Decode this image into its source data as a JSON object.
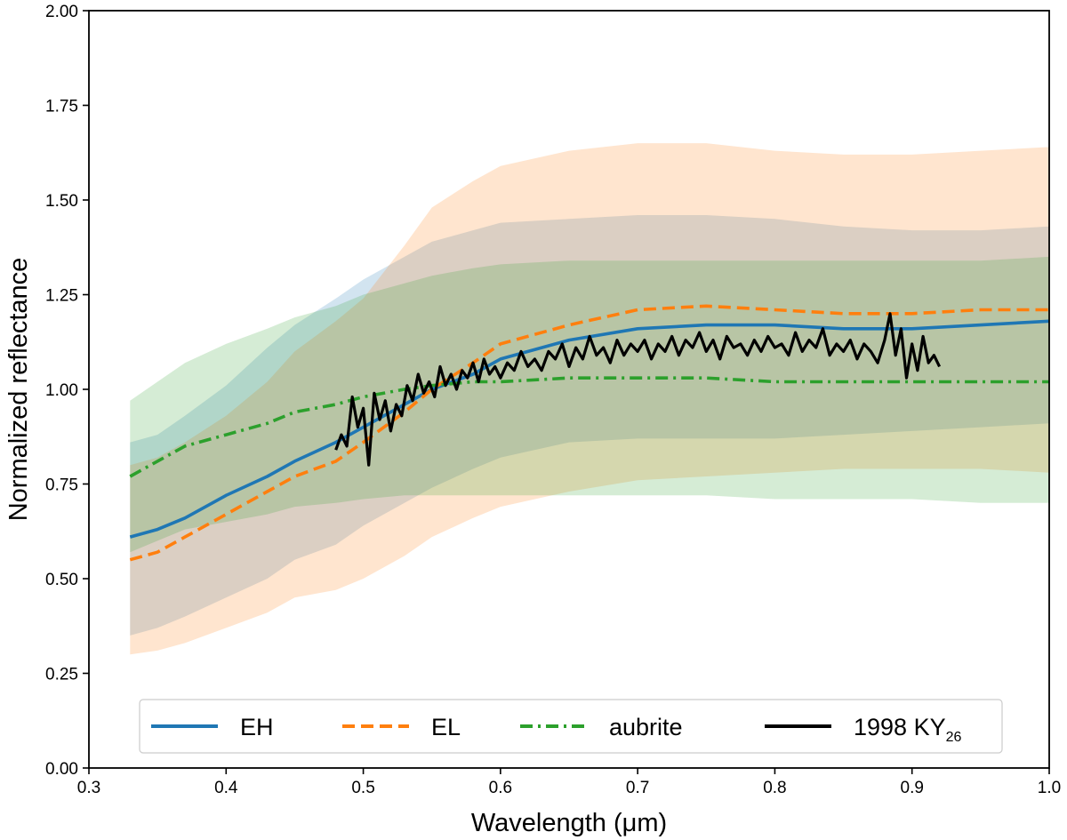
{
  "chart_data": {
    "type": "line",
    "title": "",
    "xlabel": "Wavelength (μm)",
    "ylabel": "Normalized reflectance",
    "xlim": [
      0.3,
      1.0
    ],
    "ylim": [
      0.0,
      2.0
    ],
    "xticks": [
      "0.3",
      "0.4",
      "0.5",
      "0.6",
      "0.7",
      "0.8",
      "0.9",
      "1.0"
    ],
    "yticks": [
      "0.00",
      "0.25",
      "0.50",
      "0.75",
      "1.00",
      "1.25",
      "1.50",
      "1.75",
      "2.00"
    ],
    "grid": false,
    "legend_position": "bottom",
    "series": [
      {
        "name": "EH",
        "color": "#1f77b4",
        "style": "solid",
        "x": [
          0.33,
          0.35,
          0.37,
          0.4,
          0.43,
          0.45,
          0.48,
          0.5,
          0.53,
          0.55,
          0.58,
          0.6,
          0.65,
          0.7,
          0.75,
          0.8,
          0.85,
          0.9,
          0.95,
          1.0
        ],
        "y": [
          0.61,
          0.63,
          0.66,
          0.72,
          0.77,
          0.81,
          0.86,
          0.9,
          0.96,
          1.0,
          1.04,
          1.08,
          1.13,
          1.16,
          1.17,
          1.17,
          1.16,
          1.16,
          1.17,
          1.18
        ],
        "band_upper": [
          0.86,
          0.88,
          0.93,
          1.01,
          1.11,
          1.17,
          1.24,
          1.29,
          1.35,
          1.39,
          1.42,
          1.44,
          1.45,
          1.46,
          1.46,
          1.45,
          1.43,
          1.42,
          1.42,
          1.43
        ],
        "band_lower": [
          0.35,
          0.37,
          0.4,
          0.45,
          0.5,
          0.55,
          0.59,
          0.64,
          0.7,
          0.74,
          0.79,
          0.82,
          0.86,
          0.87,
          0.87,
          0.87,
          0.88,
          0.89,
          0.9,
          0.91
        ]
      },
      {
        "name": "EL",
        "color": "#ff7f0e",
        "style": "dashed",
        "x": [
          0.33,
          0.35,
          0.37,
          0.4,
          0.43,
          0.45,
          0.48,
          0.5,
          0.53,
          0.55,
          0.58,
          0.6,
          0.65,
          0.7,
          0.75,
          0.8,
          0.85,
          0.9,
          0.95,
          1.0
        ],
        "y": [
          0.55,
          0.57,
          0.61,
          0.67,
          0.73,
          0.77,
          0.81,
          0.86,
          0.94,
          1.0,
          1.07,
          1.12,
          1.17,
          1.21,
          1.22,
          1.21,
          1.2,
          1.2,
          1.21,
          1.21
        ],
        "band_upper": [
          0.8,
          0.82,
          0.86,
          0.93,
          1.02,
          1.1,
          1.18,
          1.24,
          1.38,
          1.48,
          1.55,
          1.59,
          1.63,
          1.65,
          1.65,
          1.63,
          1.62,
          1.62,
          1.63,
          1.64
        ],
        "band_lower": [
          0.3,
          0.31,
          0.33,
          0.37,
          0.41,
          0.45,
          0.47,
          0.5,
          0.56,
          0.61,
          0.66,
          0.69,
          0.73,
          0.76,
          0.77,
          0.78,
          0.79,
          0.79,
          0.79,
          0.78
        ]
      },
      {
        "name": "aubrite",
        "color": "#2ca02c",
        "style": "dashdot",
        "x": [
          0.33,
          0.35,
          0.37,
          0.4,
          0.43,
          0.45,
          0.48,
          0.5,
          0.53,
          0.55,
          0.58,
          0.6,
          0.65,
          0.7,
          0.75,
          0.8,
          0.85,
          0.9,
          0.95,
          1.0
        ],
        "y": [
          0.77,
          0.81,
          0.85,
          0.88,
          0.91,
          0.94,
          0.96,
          0.98,
          1.0,
          1.01,
          1.02,
          1.02,
          1.03,
          1.03,
          1.03,
          1.02,
          1.02,
          1.02,
          1.02,
          1.02
        ],
        "band_upper": [
          0.97,
          1.02,
          1.07,
          1.12,
          1.16,
          1.19,
          1.22,
          1.25,
          1.28,
          1.3,
          1.32,
          1.33,
          1.34,
          1.34,
          1.34,
          1.34,
          1.34,
          1.34,
          1.34,
          1.35
        ],
        "band_lower": [
          0.57,
          0.6,
          0.63,
          0.65,
          0.67,
          0.69,
          0.7,
          0.71,
          0.72,
          0.72,
          0.72,
          0.72,
          0.72,
          0.72,
          0.72,
          0.71,
          0.71,
          0.71,
          0.7,
          0.7
        ]
      },
      {
        "name": "1998 KY",
        "name_subscript": "26",
        "color": "#000000",
        "style": "solid",
        "x": [
          0.48,
          0.484,
          0.488,
          0.492,
          0.496,
          0.5,
          0.504,
          0.508,
          0.512,
          0.516,
          0.52,
          0.524,
          0.528,
          0.532,
          0.536,
          0.54,
          0.544,
          0.548,
          0.552,
          0.556,
          0.56,
          0.564,
          0.568,
          0.572,
          0.576,
          0.58,
          0.584,
          0.588,
          0.592,
          0.596,
          0.6,
          0.605,
          0.61,
          0.615,
          0.62,
          0.625,
          0.63,
          0.635,
          0.64,
          0.645,
          0.65,
          0.655,
          0.66,
          0.665,
          0.67,
          0.675,
          0.68,
          0.685,
          0.69,
          0.695,
          0.7,
          0.705,
          0.71,
          0.715,
          0.72,
          0.725,
          0.73,
          0.735,
          0.74,
          0.745,
          0.75,
          0.755,
          0.76,
          0.765,
          0.77,
          0.775,
          0.78,
          0.785,
          0.79,
          0.795,
          0.8,
          0.805,
          0.81,
          0.815,
          0.82,
          0.825,
          0.83,
          0.835,
          0.84,
          0.845,
          0.85,
          0.855,
          0.86,
          0.865,
          0.87,
          0.875,
          0.88,
          0.884,
          0.888,
          0.892,
          0.896,
          0.9,
          0.904,
          0.908,
          0.912,
          0.916,
          0.92
        ],
        "y": [
          0.84,
          0.88,
          0.85,
          0.98,
          0.9,
          0.95,
          0.8,
          0.99,
          0.92,
          0.97,
          0.89,
          0.96,
          0.93,
          1.01,
          0.97,
          1.04,
          0.99,
          1.02,
          0.98,
          1.06,
          1.01,
          1.04,
          1.0,
          1.05,
          1.03,
          1.07,
          1.02,
          1.08,
          1.04,
          1.06,
          1.03,
          1.07,
          1.05,
          1.1,
          1.06,
          1.08,
          1.05,
          1.1,
          1.08,
          1.12,
          1.06,
          1.11,
          1.08,
          1.14,
          1.09,
          1.11,
          1.07,
          1.13,
          1.09,
          1.12,
          1.1,
          1.13,
          1.08,
          1.12,
          1.1,
          1.14,
          1.09,
          1.13,
          1.11,
          1.15,
          1.1,
          1.13,
          1.08,
          1.14,
          1.11,
          1.12,
          1.09,
          1.13,
          1.1,
          1.14,
          1.11,
          1.12,
          1.09,
          1.15,
          1.1,
          1.13,
          1.11,
          1.16,
          1.09,
          1.12,
          1.1,
          1.13,
          1.08,
          1.12,
          1.1,
          1.07,
          1.13,
          1.2,
          1.09,
          1.16,
          1.03,
          1.12,
          1.05,
          1.14,
          1.07,
          1.09,
          1.06
        ]
      }
    ]
  }
}
